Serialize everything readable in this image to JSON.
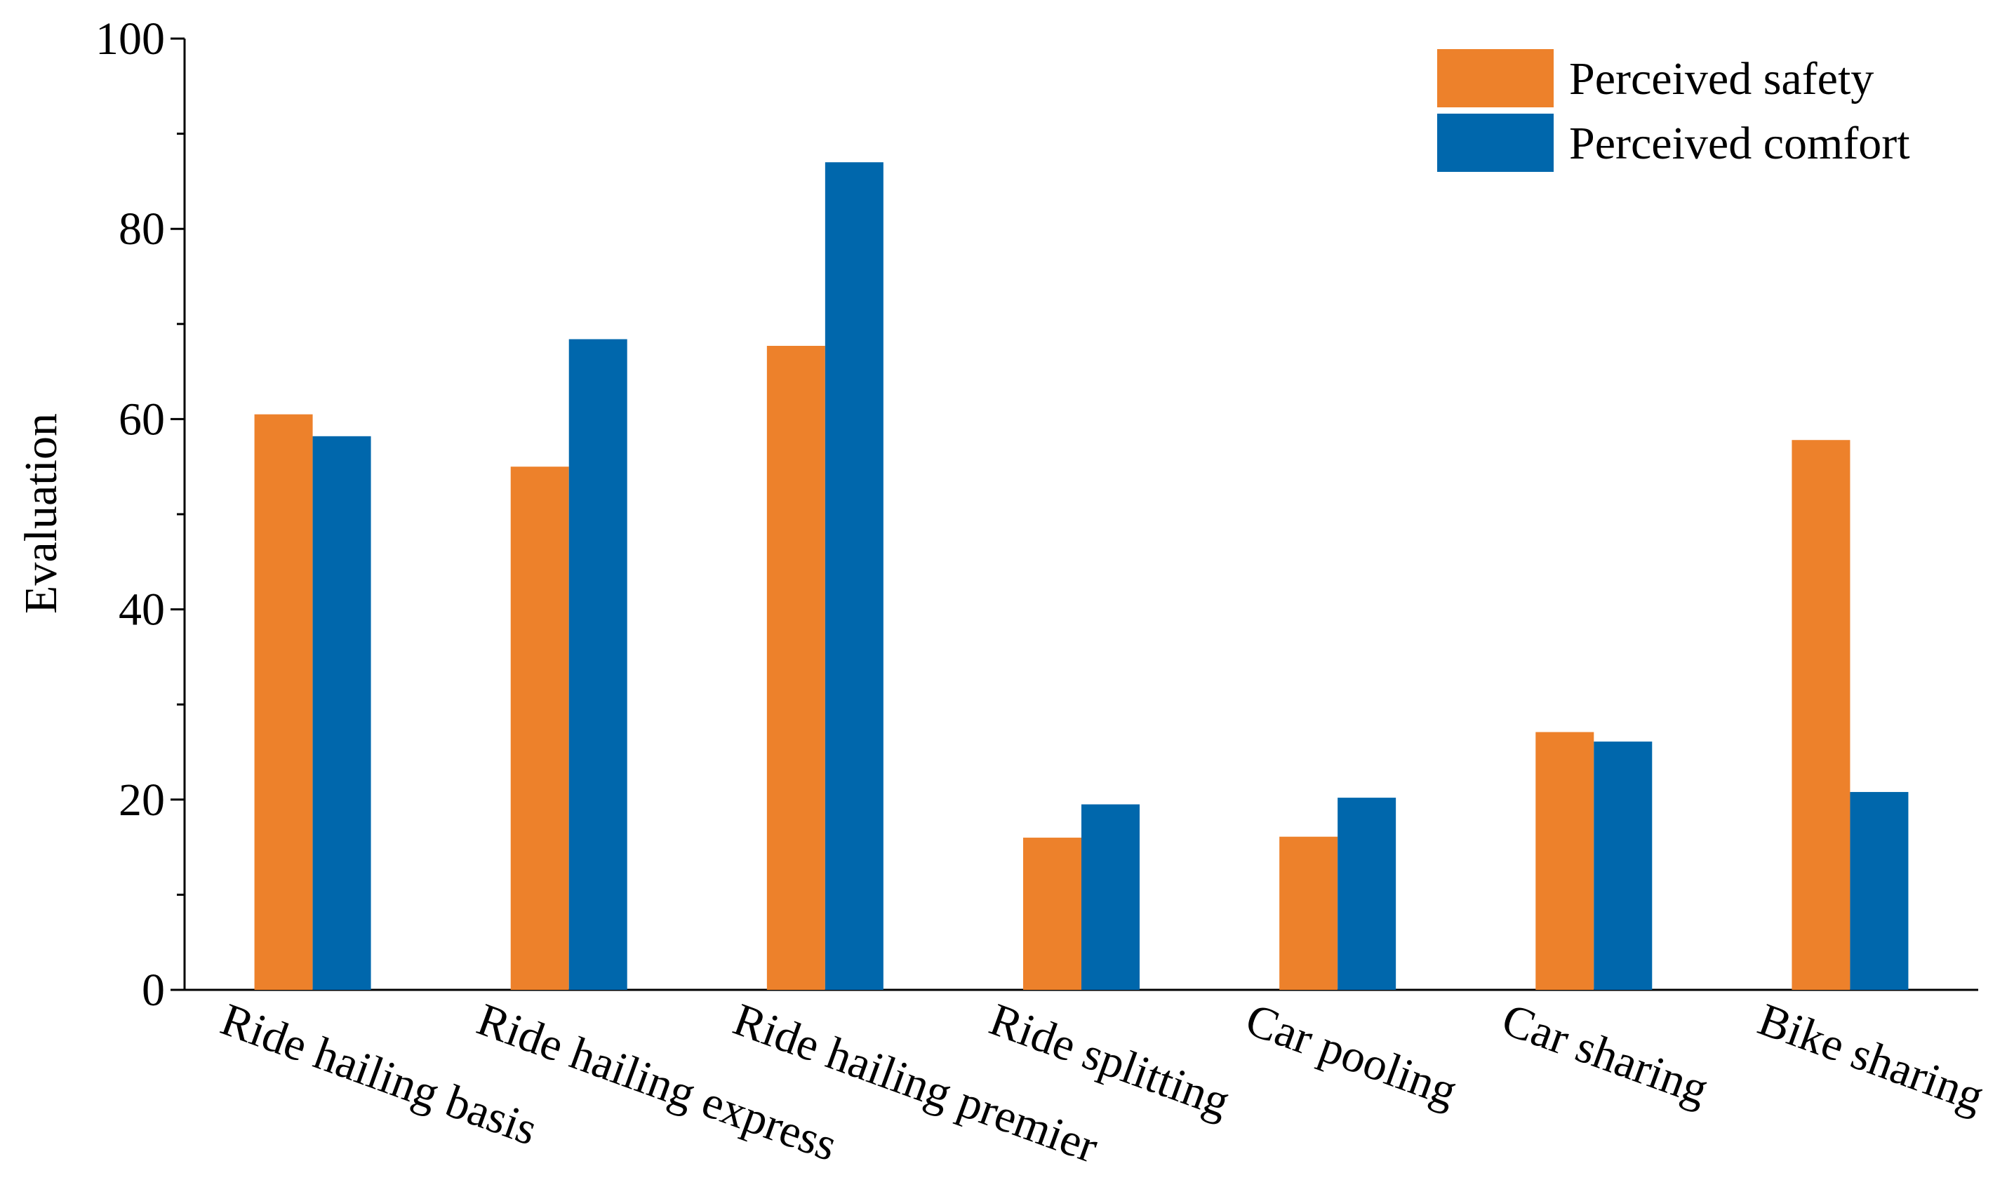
{
  "chart_data": {
    "type": "bar",
    "y_label": "Evaluation",
    "categories": [
      "Ride hailing basis",
      "Ride hailing express",
      "Ride hailing premier",
      "Ride splitting",
      "Car pooling",
      "Car sharing",
      "Bike sharing"
    ],
    "series": [
      {
        "name": "Perceived safety",
        "color": "#ed812b",
        "values": [
          60.5,
          55,
          67.7,
          16,
          16.1,
          27.1,
          57.8
        ]
      },
      {
        "name": "Perceived comfort",
        "color": "#0067ac",
        "values": [
          58.2,
          68.4,
          87,
          19.5,
          20.2,
          26.1,
          20.8
        ]
      }
    ],
    "ylim": [
      0,
      100
    ],
    "yticks": [
      0,
      20,
      40,
      60,
      80,
      100
    ],
    "legend": "upper right"
  }
}
